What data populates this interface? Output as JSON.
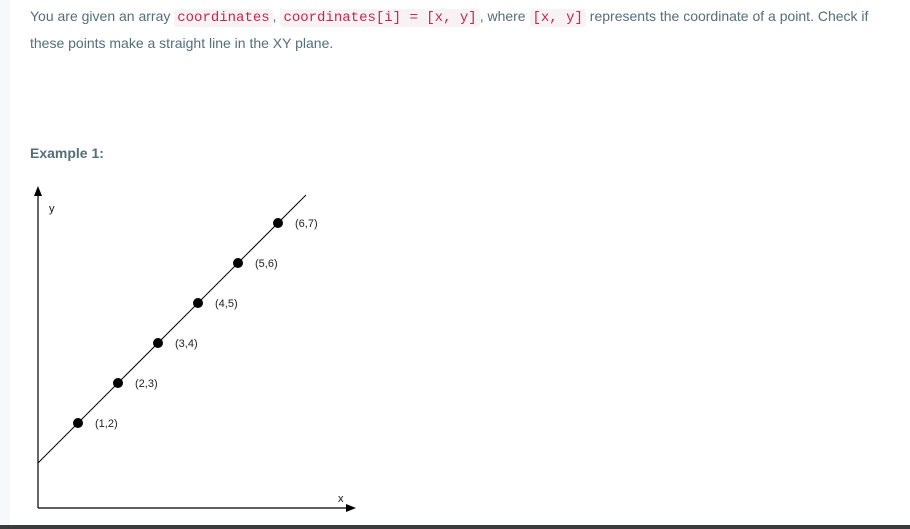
{
  "problem": {
    "text_1": "You are given an array ",
    "code_1": "coordinates",
    "text_2": ", ",
    "code_2": "coordinates[i] = [x, y]",
    "text_3": ", where ",
    "code_3": "[x, y]",
    "text_4": " represents the coordinate of a point. Check if these points make a straight line in the XY plane."
  },
  "example": {
    "heading": "Example 1:"
  },
  "chart_data": {
    "type": "scatter",
    "xlabel": "x",
    "ylabel": "y",
    "grid": false,
    "points": [
      {
        "x": 1,
        "y": 2,
        "label": "(1,2)"
      },
      {
        "x": 2,
        "y": 3,
        "label": "(2,3)"
      },
      {
        "x": 3,
        "y": 4,
        "label": "(3,4)"
      },
      {
        "x": 4,
        "y": 5,
        "label": "(4,5)"
      },
      {
        "x": 5,
        "y": 6,
        "label": "(5,6)"
      },
      {
        "x": 6,
        "y": 7,
        "label": "(6,7)"
      }
    ],
    "line": {
      "slope": 1,
      "intercept": 1
    }
  }
}
